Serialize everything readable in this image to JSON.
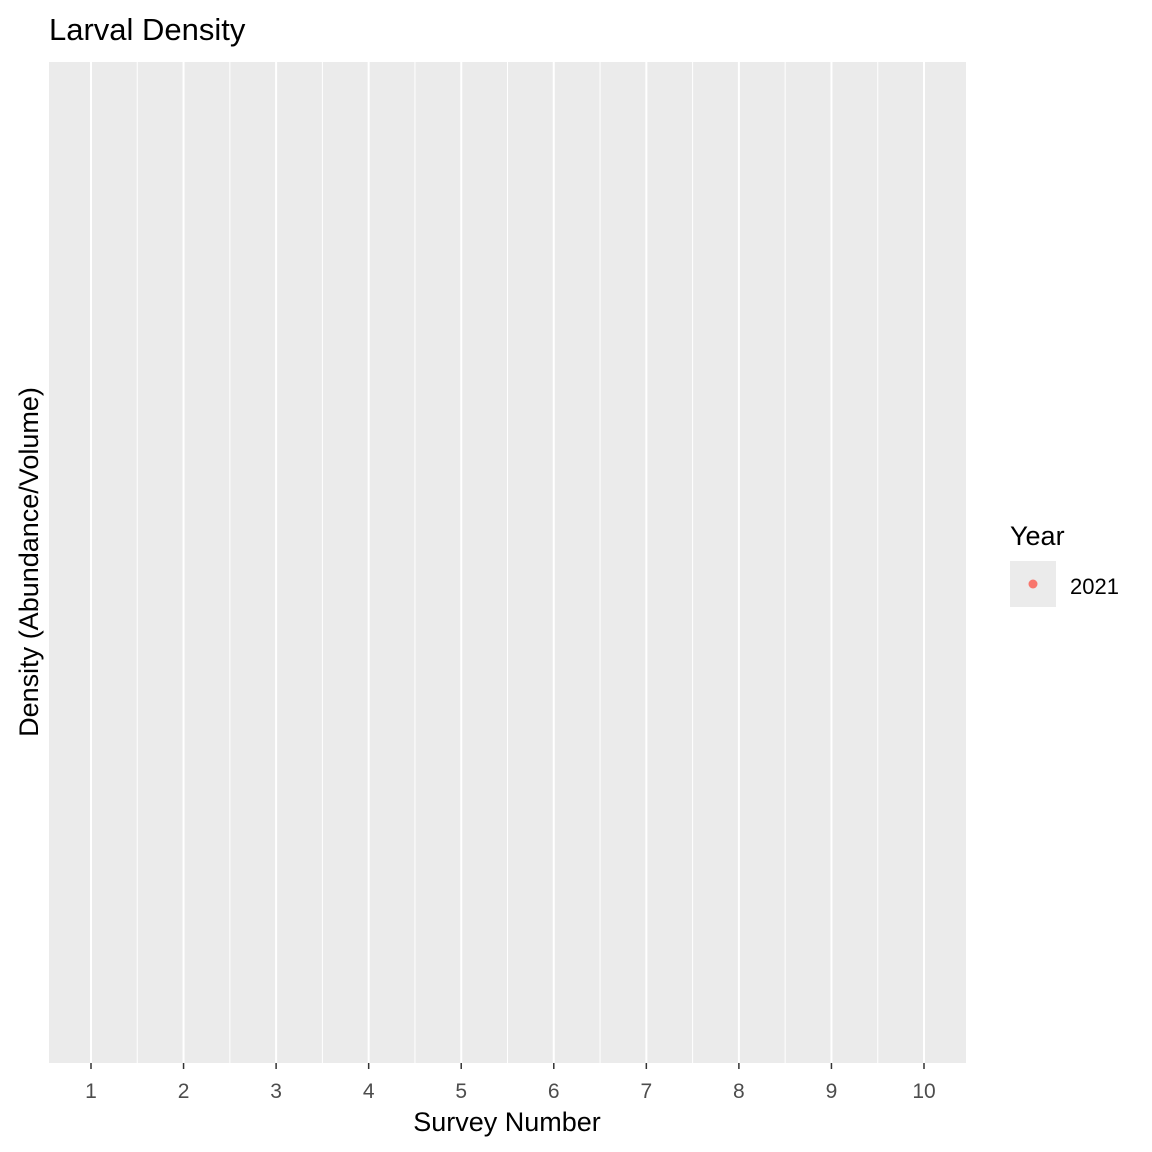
{
  "chart_data": {
    "type": "scatter",
    "title": "Larval Density",
    "xlabel": "Survey Number",
    "ylabel": "Density (Abundance/Volume)",
    "categories": [
      "1",
      "2",
      "3",
      "4",
      "5",
      "6",
      "7",
      "8",
      "9",
      "10"
    ],
    "series": [
      {
        "name": "2021",
        "color": "#F8766D",
        "values": []
      }
    ],
    "legend": {
      "title": "Year",
      "position": "right"
    },
    "grid": true,
    "panel_background": "#EBEBEB",
    "gridline_color": "#FFFFFF"
  }
}
